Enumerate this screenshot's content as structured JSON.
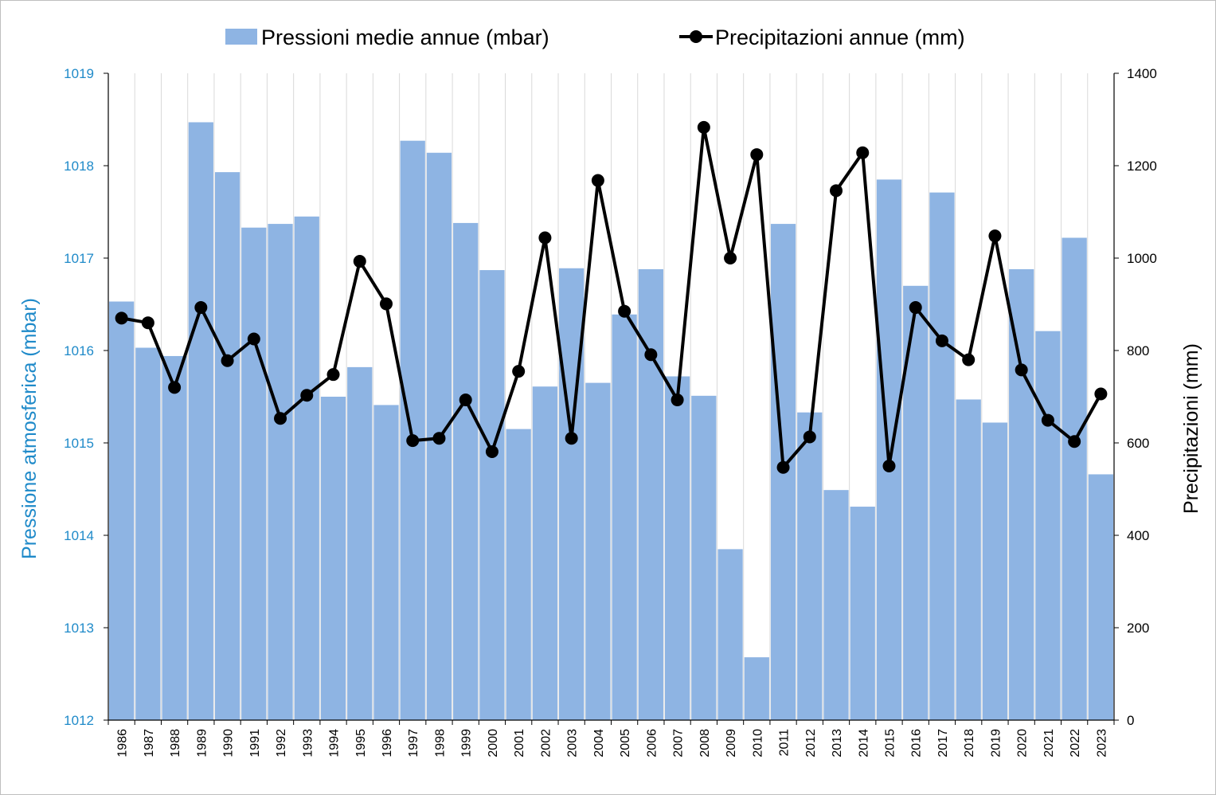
{
  "chart_data": {
    "type": "bar+line",
    "categories": [
      "1986",
      "1987",
      "1988",
      "1989",
      "1990",
      "1991",
      "1992",
      "1993",
      "1994",
      "1995",
      "1996",
      "1997",
      "1998",
      "1999",
      "2000",
      "2001",
      "2002",
      "2003",
      "2004",
      "2005",
      "2006",
      "2007",
      "2008",
      "2009",
      "2010",
      "2011",
      "2012",
      "2013",
      "2014",
      "2015",
      "2016",
      "2017",
      "2018",
      "2019",
      "2020",
      "2021",
      "2022",
      "2023"
    ],
    "series": [
      {
        "name": "Pressioni medie annue (mbar)",
        "type": "bar",
        "axis": "left",
        "color": "#8eb4e3",
        "values": [
          1016.53,
          1016.03,
          1015.94,
          1018.47,
          1017.93,
          1017.33,
          1017.37,
          1017.45,
          1015.5,
          1015.82,
          1015.41,
          1018.27,
          1018.14,
          1017.38,
          1016.87,
          1015.15,
          1015.61,
          1016.89,
          1015.65,
          1016.39,
          1016.88,
          1015.72,
          1015.51,
          1013.85,
          1012.68,
          1017.37,
          1015.33,
          1014.49,
          1014.31,
          1017.85,
          1016.7,
          1017.71,
          1015.47,
          1015.22,
          1016.88,
          1016.21,
          1017.22,
          1014.66
        ]
      },
      {
        "name": "Precipitazioni annue (mm)",
        "type": "line",
        "axis": "right",
        "color": "#000000",
        "values": [
          870,
          860,
          720,
          893,
          778,
          825,
          653,
          703,
          748,
          993,
          901,
          605,
          610,
          693,
          581,
          755,
          1044,
          610,
          1168,
          885,
          791,
          693,
          1283,
          1000,
          1224,
          547,
          613,
          1146,
          1228,
          550,
          893,
          821,
          780,
          1048,
          758,
          649,
          603,
          706
        ]
      }
    ],
    "left_axis": {
      "label": "Pressione  atmosferica  (mbar)",
      "min": 1012,
      "max": 1019,
      "step": 1,
      "color": "#1f8ac9",
      "ticks": [
        "1012",
        "1013",
        "1014",
        "1015",
        "1016",
        "1017",
        "1018",
        "1019"
      ]
    },
    "right_axis": {
      "label": "Precipitazioni  (mm)",
      "min": 0,
      "max": 1400,
      "step": 200,
      "color": "#000000",
      "ticks": [
        "0",
        "200",
        "400",
        "600",
        "800",
        "1000",
        "1200",
        "1400"
      ]
    },
    "legend": {
      "placement": "top",
      "entries": [
        "Pressioni medie annue (mbar)",
        "Precipitazioni annue (mm)"
      ]
    },
    "grid": {
      "vertical": true,
      "horizontal": false,
      "color": "#d9d9d9"
    }
  }
}
